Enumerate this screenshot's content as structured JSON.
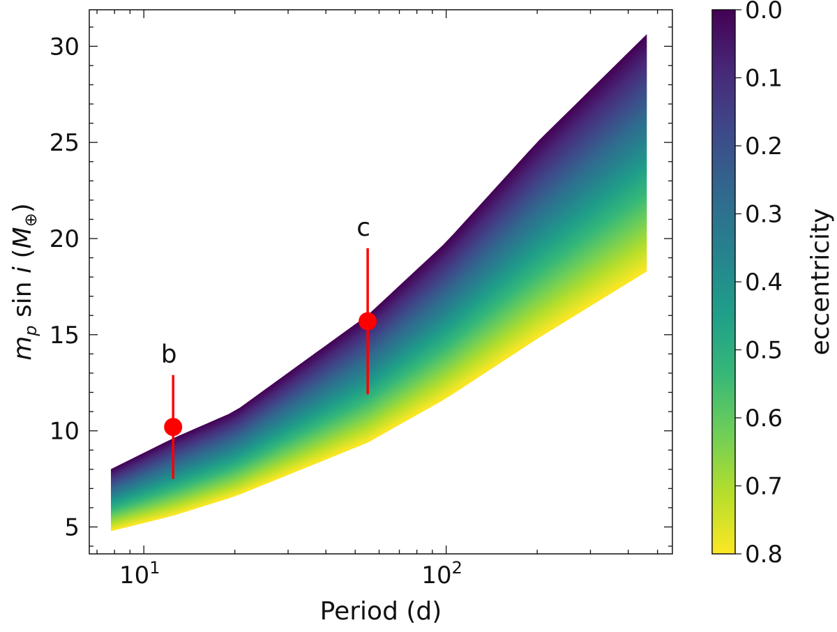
{
  "chart_data": {
    "type": "scatter",
    "title": "",
    "xlabel": "Period (d)",
    "ylabel_parts": {
      "m": "m",
      "sub": "p",
      "mid": " sin ",
      "i": "i",
      "unit_open": " (",
      "M": "M",
      "sub2": "⊕",
      "unit_close": ")"
    },
    "xscale": "log",
    "xlim": [
      6.6,
      560
    ],
    "ylim": [
      3.6,
      31.9
    ],
    "x_ticks": [
      {
        "base": "10",
        "exp": "1",
        "value": 10
      },
      {
        "base": "10",
        "exp": "2",
        "value": 100
      }
    ],
    "y_ticks": [
      {
        "label": "5",
        "value": 5
      },
      {
        "label": "10",
        "value": 10
      },
      {
        "label": "15",
        "value": 15
      },
      {
        "label": "20",
        "value": 20
      },
      {
        "label": "25",
        "value": 25
      },
      {
        "label": "30",
        "value": 30
      }
    ],
    "region": {
      "description_series": "minimum mass vs period colored by eccentricity",
      "period_range": [
        7.8,
        460
      ],
      "mass_e0_at_period": [
        [
          7.8,
          8.0
        ],
        [
          12.5,
          9.6
        ],
        [
          20,
          11.0
        ],
        [
          55,
          16.0
        ],
        [
          100,
          19.8
        ],
        [
          200,
          25.0
        ],
        [
          460,
          30.6
        ]
      ],
      "mass_e08_at_period": [
        [
          7.8,
          4.8
        ],
        [
          12.5,
          5.6
        ],
        [
          20,
          6.6
        ],
        [
          55,
          9.4
        ],
        [
          100,
          11.7
        ],
        [
          200,
          14.8
        ],
        [
          460,
          18.3
        ]
      ],
      "eccentricity_range": [
        0.0,
        0.8
      ]
    },
    "points": [
      {
        "name": "b",
        "period": 12.5,
        "mass": 10.2,
        "err_low": 7.5,
        "err_high": 12.9,
        "color": "#ff0000"
      },
      {
        "name": "c",
        "period": 55,
        "mass": 15.7,
        "err_low": 11.9,
        "err_high": 19.5,
        "color": "#ff0000"
      }
    ],
    "colorbar": {
      "label": "eccentricity",
      "colormap": "viridis_r",
      "range": [
        0.0,
        0.8
      ],
      "ticks": [
        "0.0",
        "0.1",
        "0.2",
        "0.3",
        "0.4",
        "0.5",
        "0.6",
        "0.7",
        "0.8"
      ],
      "stops": [
        "#440154",
        "#482878",
        "#3e4989",
        "#31688e",
        "#26828e",
        "#1f9e89",
        "#35b779",
        "#6ece58",
        "#b5de2b",
        "#fde725"
      ]
    }
  }
}
